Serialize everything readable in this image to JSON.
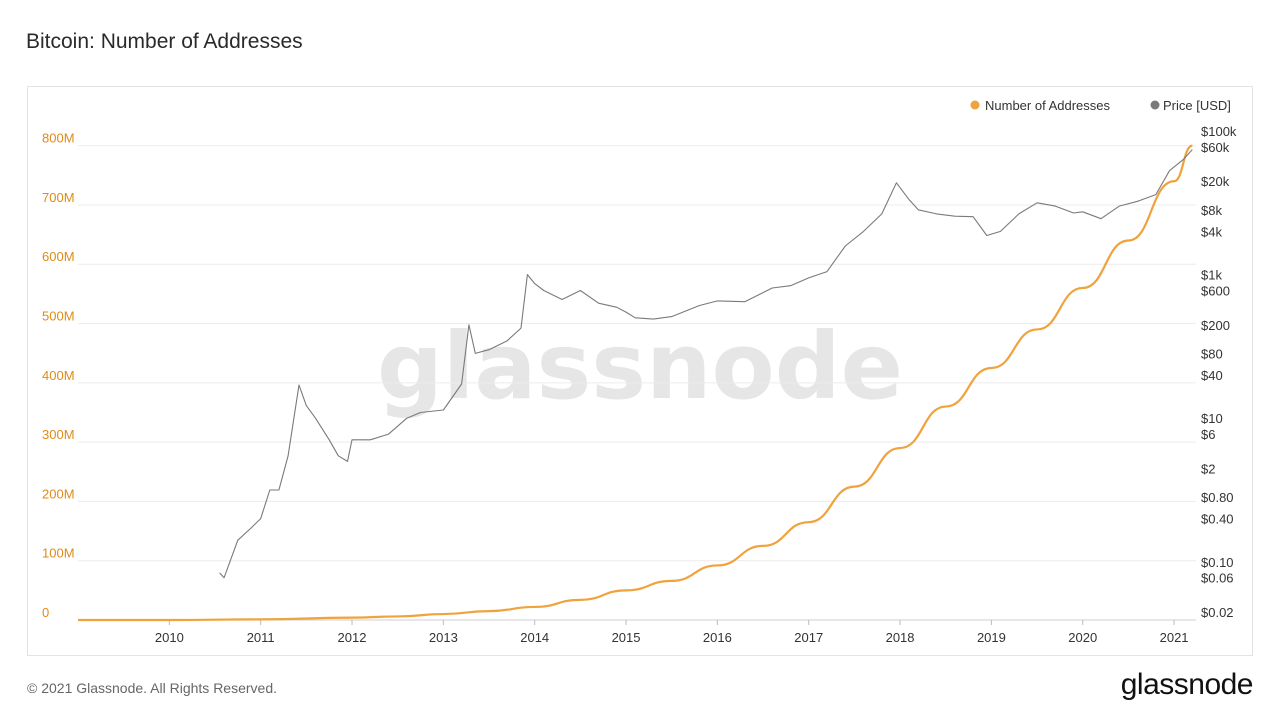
{
  "title": "Bitcoin: Number of Addresses",
  "footer": {
    "copyright": "© 2021 Glassnode. All Rights Reserved.",
    "logo": "glassnode"
  },
  "watermark": "glassnode",
  "colors": {
    "addresses": "#f0a23c",
    "price": "#7a7a7a",
    "left_axis": "#e08a18",
    "grid": "#ececec"
  },
  "chart_data": {
    "type": "line",
    "title": "Bitcoin: Number of Addresses",
    "legend": {
      "placement": "top-right",
      "entries": [
        "Number of Addresses",
        "Price [USD]"
      ]
    },
    "x_axis": {
      "ticks": [
        "2010",
        "2011",
        "2012",
        "2013",
        "2014",
        "2015",
        "2016",
        "2017",
        "2018",
        "2019",
        "2020",
        "2021"
      ]
    },
    "y_left": {
      "scale": "linear",
      "range": [
        0,
        850000000
      ],
      "ticks": [
        "0",
        "100M",
        "200M",
        "300M",
        "400M",
        "500M",
        "600M",
        "700M",
        "800M"
      ],
      "ticks_values": [
        0,
        100000000,
        200000000,
        300000000,
        400000000,
        500000000,
        600000000,
        700000000,
        800000000
      ]
    },
    "y_right": {
      "scale": "log",
      "range": [
        0.02,
        100000
      ],
      "ticks": [
        "$100k",
        "$60k",
        "$20k",
        "$8k",
        "$4k",
        "$1k",
        "$600",
        "$200",
        "$80",
        "$40",
        "$10",
        "$6",
        "$2",
        "$0.80",
        "$0.40",
        "$0.10",
        "$0.06",
        "$0.02"
      ],
      "ticks_values": [
        100000,
        60000,
        20000,
        8000,
        4000,
        1000,
        600,
        200,
        80,
        40,
        10,
        6,
        2,
        0.8,
        0.4,
        0.1,
        0.06,
        0.02
      ]
    },
    "grid": true,
    "series": [
      {
        "name": "Number of Addresses",
        "axis": "left",
        "x": [
          2009.0,
          2010.0,
          2011.0,
          2012.0,
          2012.5,
          2013.0,
          2013.5,
          2014.0,
          2014.5,
          2015.0,
          2015.5,
          2016.0,
          2016.5,
          2017.0,
          2017.5,
          2018.0,
          2018.5,
          2019.0,
          2019.5,
          2020.0,
          2020.5,
          2021.0,
          2021.2
        ],
        "values": [
          0,
          0,
          1000000,
          4000000,
          6000000,
          10000000,
          15000000,
          22000000,
          34000000,
          50000000,
          66000000,
          92000000,
          125000000,
          165000000,
          225000000,
          290000000,
          360000000,
          425000000,
          490000000,
          560000000,
          640000000,
          740000000,
          800000000
        ]
      },
      {
        "name": "Price [USD]",
        "axis": "right",
        "x": [
          2010.55,
          2010.6,
          2010.75,
          2010.9,
          2011.0,
          2011.1,
          2011.2,
          2011.3,
          2011.42,
          2011.5,
          2011.6,
          2011.75,
          2011.85,
          2011.95,
          2012.0,
          2012.2,
          2012.4,
          2012.6,
          2012.75,
          2013.0,
          2013.2,
          2013.28,
          2013.35,
          2013.5,
          2013.7,
          2013.85,
          2013.92,
          2014.0,
          2014.1,
          2014.3,
          2014.5,
          2014.7,
          2014.9,
          2015.0,
          2015.1,
          2015.3,
          2015.5,
          2015.8,
          2016.0,
          2016.3,
          2016.6,
          2016.8,
          2017.0,
          2017.2,
          2017.4,
          2017.6,
          2017.8,
          2017.96,
          2018.1,
          2018.2,
          2018.4,
          2018.6,
          2018.8,
          2018.95,
          2019.1,
          2019.3,
          2019.5,
          2019.7,
          2019.9,
          2020.0,
          2020.2,
          2020.4,
          2020.6,
          2020.8,
          2020.95,
          2021.1,
          2021.2
        ],
        "values": [
          0.07,
          0.06,
          0.2,
          0.3,
          0.4,
          1,
          1,
          3,
          29,
          15,
          10,
          5,
          3,
          2.5,
          5,
          5,
          6,
          10,
          12,
          13,
          30,
          200,
          80,
          90,
          120,
          180,
          1000,
          750,
          600,
          450,
          600,
          400,
          350,
          300,
          250,
          240,
          260,
          370,
          430,
          420,
          650,
          700,
          900,
          1100,
          2500,
          4000,
          7000,
          19000,
          11000,
          8000,
          7000,
          6500,
          6400,
          3500,
          4000,
          7000,
          10000,
          9000,
          7200,
          7500,
          6000,
          9000,
          10500,
          13000,
          28000,
          40000,
          55000
        ]
      }
    ]
  }
}
